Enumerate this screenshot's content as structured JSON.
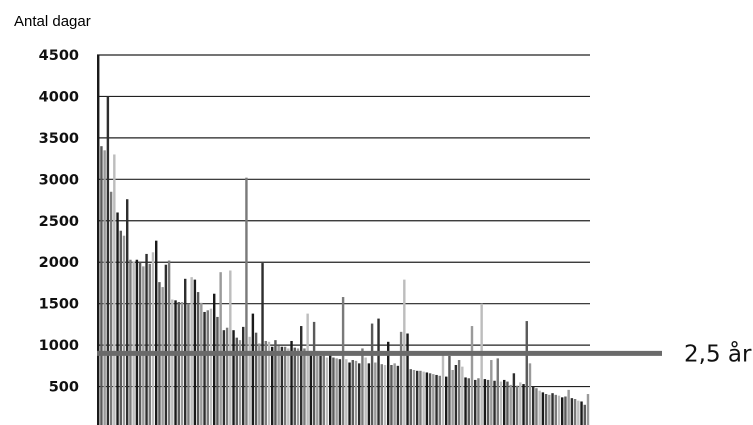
{
  "chart_data": {
    "type": "bar",
    "ylabel": "Antal dagar",
    "ylim": [
      0,
      4500
    ],
    "y_ticks": [
      500,
      1000,
      1500,
      2000,
      2500,
      3000,
      3500,
      4000,
      4500
    ],
    "y_tick_labels": [
      "500",
      "1000",
      "1500",
      "2000",
      "2500",
      "3000",
      "3500",
      "4000",
      "4500"
    ],
    "grid": true,
    "reference_line": {
      "value": 900,
      "label": "2,5 år"
    },
    "values": [
      4500,
      3400,
      3350,
      4000,
      2850,
      3300,
      2600,
      2380,
      2320,
      2760,
      2030,
      2010,
      2030,
      2000,
      1950,
      2100,
      1980,
      2120,
      2260,
      1760,
      1700,
      1970,
      2020,
      1550,
      1540,
      1520,
      1520,
      1800,
      1500,
      1820,
      1790,
      1640,
      1510,
      1400,
      1420,
      1440,
      1620,
      1340,
      1880,
      1180,
      1210,
      1900,
      1180,
      1090,
      1060,
      1220,
      3020,
      1100,
      1380,
      1150,
      1020,
      1990,
      1050,
      1040,
      980,
      1060,
      990,
      980,
      980,
      960,
      1050,
      970,
      960,
      1230,
      960,
      1380,
      930,
      1280,
      890,
      870,
      880,
      850,
      900,
      850,
      840,
      830,
      1580,
      830,
      790,
      820,
      810,
      780,
      960,
      850,
      780,
      1260,
      790,
      1320,
      770,
      760,
      1040,
      760,
      780,
      750,
      1160,
      1790,
      1140,
      710,
      700,
      690,
      690,
      680,
      670,
      660,
      650,
      640,
      630,
      890,
      620,
      870,
      700,
      760,
      820,
      740,
      610,
      600,
      1230,
      580,
      600,
      1500,
      590,
      580,
      820,
      570,
      840,
      560,
      580,
      560,
      520,
      660,
      510,
      550,
      530,
      1290,
      780,
      500,
      480,
      450,
      430,
      410,
      400,
      420,
      400,
      390,
      370,
      380,
      460,
      360,
      350,
      330,
      320,
      280,
      410
    ]
  }
}
